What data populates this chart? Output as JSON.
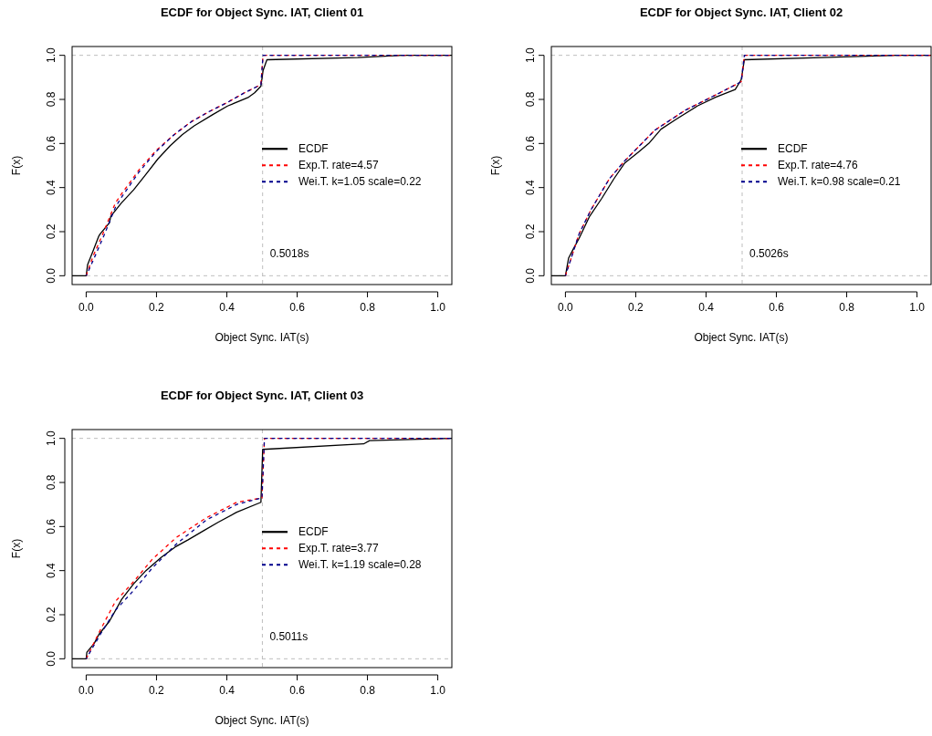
{
  "chart_data": [
    {
      "type": "line",
      "title": "ECDF for Object Sync. IAT, Client 01",
      "xlabel": "Object Sync. IAT(s)",
      "ylabel": "F(x)",
      "xlim": [
        -0.04,
        1.04
      ],
      "ylim": [
        -0.04,
        1.04
      ],
      "xticks": [
        {
          "value": 0,
          "label": "0.0"
        },
        {
          "value": 0.2,
          "label": "0.2"
        },
        {
          "value": 0.4,
          "label": "0.4"
        },
        {
          "value": 0.6,
          "label": "0.6"
        },
        {
          "value": 0.8,
          "label": "0.8"
        },
        {
          "value": 1,
          "label": "1.0"
        }
      ],
      "yticks": [
        {
          "value": 0,
          "label": "0.0"
        },
        {
          "value": 0.2,
          "label": "0.2"
        },
        {
          "value": 0.4,
          "label": "0.4"
        },
        {
          "value": 0.6,
          "label": "0.6"
        },
        {
          "value": 0.8,
          "label": "0.8"
        },
        {
          "value": 1,
          "label": "1.0"
        }
      ],
      "legend": "right",
      "ref_lines": [
        {
          "axis": "y",
          "value": 0,
          "color": "#bebebe",
          "line_style": "dashed"
        },
        {
          "axis": "y",
          "value": 1,
          "color": "#bebebe",
          "line_style": "dashed"
        },
        {
          "axis": "x",
          "value": 0.5018,
          "label": "0.5018s",
          "color": "#bebebe",
          "line_style": "dashed"
        }
      ],
      "series": [
        {
          "name": "ECDF",
          "color": "#000000",
          "line_style": "solid",
          "x": [
            -0.04,
            0,
            0.004,
            0.019,
            0.036,
            0.04,
            0.066,
            0.07,
            0.1,
            0.135,
            0.17,
            0.204,
            0.239,
            0.273,
            0.307,
            0.359,
            0.402,
            0.462,
            0.479,
            0.497,
            0.503,
            0.514,
            0.772,
            0.9,
            1.04
          ],
          "values": [
            0,
            0,
            0.05,
            0.11,
            0.18,
            0.19,
            0.24,
            0.27,
            0.33,
            0.39,
            0.46,
            0.53,
            0.59,
            0.64,
            0.68,
            0.73,
            0.77,
            0.81,
            0.83,
            0.86,
            0.93,
            0.98,
            0.99,
            1,
            1
          ]
        },
        {
          "name": "Exp.T. rate=4.57",
          "color": "#ff0000",
          "line_style": "dashed",
          "x": [
            0,
            0.02,
            0.05,
            0.083,
            0.1,
            0.15,
            0.2,
            0.25,
            0.3,
            0.35,
            0.4,
            0.45,
            0.497,
            0.503,
            1.04
          ],
          "values": [
            0,
            0.09,
            0.2,
            0.33,
            0.37,
            0.48,
            0.57,
            0.64,
            0.7,
            0.745,
            0.785,
            0.83,
            0.867,
            1,
            1
          ]
        },
        {
          "name": "Wei.T. k=1.05 scale=0.22",
          "color": "#00008b",
          "line_style": "dashed",
          "x": [
            0,
            0.02,
            0.05,
            0.083,
            0.1,
            0.15,
            0.2,
            0.25,
            0.3,
            0.35,
            0.4,
            0.45,
            0.497,
            0.503,
            1.04
          ],
          "values": [
            0,
            0.07,
            0.18,
            0.31,
            0.355,
            0.47,
            0.565,
            0.64,
            0.7,
            0.745,
            0.785,
            0.83,
            0.867,
            1,
            1
          ]
        }
      ]
    },
    {
      "type": "line",
      "title": "ECDF for Object Sync. IAT, Client 02",
      "xlabel": "Object Sync. IAT(s)",
      "ylabel": "F(x)",
      "xlim": [
        -0.04,
        1.04
      ],
      "ylim": [
        -0.04,
        1.04
      ],
      "xticks": [
        {
          "value": 0,
          "label": "0.0"
        },
        {
          "value": 0.2,
          "label": "0.2"
        },
        {
          "value": 0.4,
          "label": "0.4"
        },
        {
          "value": 0.6,
          "label": "0.6"
        },
        {
          "value": 0.8,
          "label": "0.8"
        },
        {
          "value": 1,
          "label": "1.0"
        }
      ],
      "yticks": [
        {
          "value": 0,
          "label": "0.0"
        },
        {
          "value": 0.2,
          "label": "0.2"
        },
        {
          "value": 0.4,
          "label": "0.4"
        },
        {
          "value": 0.6,
          "label": "0.6"
        },
        {
          "value": 0.8,
          "label": "0.8"
        },
        {
          "value": 1,
          "label": "1.0"
        }
      ],
      "legend": "right",
      "ref_lines": [
        {
          "axis": "y",
          "value": 0,
          "color": "#bebebe",
          "line_style": "dashed"
        },
        {
          "axis": "y",
          "value": 1,
          "color": "#bebebe",
          "line_style": "dashed"
        },
        {
          "axis": "x",
          "value": 0.5026,
          "label": "0.5026s",
          "color": "#bebebe",
          "line_style": "dashed"
        }
      ],
      "series": [
        {
          "name": "ECDF",
          "color": "#000000",
          "line_style": "solid",
          "x": [
            -0.04,
            0,
            0.009,
            0.022,
            0.039,
            0.069,
            0.103,
            0.138,
            0.168,
            0.207,
            0.237,
            0.272,
            0.315,
            0.375,
            0.427,
            0.483,
            0.5,
            0.509,
            0.728,
            0.944,
            1.04
          ],
          "values": [
            0,
            0,
            0.08,
            0.12,
            0.17,
            0.27,
            0.35,
            0.44,
            0.51,
            0.56,
            0.6,
            0.665,
            0.71,
            0.77,
            0.81,
            0.845,
            0.89,
            0.98,
            0.99,
            1,
            1
          ]
        },
        {
          "name": "Exp.T. rate=4.76",
          "color": "#ff0000",
          "line_style": "dashed",
          "x": [
            0,
            0.039,
            0.073,
            0.125,
            0.168,
            0.254,
            0.34,
            0.427,
            0.5,
            0.509,
            1.04
          ],
          "values": [
            0,
            0.19,
            0.3,
            0.44,
            0.52,
            0.66,
            0.75,
            0.82,
            0.88,
            1,
            1
          ]
        },
        {
          "name": "Wei.T. k=0.98 scale=0.21",
          "color": "#00008b",
          "line_style": "dashed",
          "x": [
            0,
            0.039,
            0.073,
            0.125,
            0.168,
            0.254,
            0.34,
            0.427,
            0.5,
            0.509,
            1.04
          ],
          "values": [
            0,
            0.19,
            0.3,
            0.44,
            0.52,
            0.66,
            0.75,
            0.82,
            0.88,
            1,
            1
          ]
        }
      ]
    },
    {
      "type": "line",
      "title": "ECDF for Object Sync. IAT, Client 03",
      "xlabel": "Object Sync. IAT(s)",
      "ylabel": "F(x)",
      "xlim": [
        -0.04,
        1.04
      ],
      "ylim": [
        -0.04,
        1.04
      ],
      "xticks": [
        {
          "value": 0,
          "label": "0.0"
        },
        {
          "value": 0.2,
          "label": "0.2"
        },
        {
          "value": 0.4,
          "label": "0.4"
        },
        {
          "value": 0.6,
          "label": "0.6"
        },
        {
          "value": 0.8,
          "label": "0.8"
        },
        {
          "value": 1,
          "label": "1.0"
        }
      ],
      "yticks": [
        {
          "value": 0,
          "label": "0.0"
        },
        {
          "value": 0.2,
          "label": "0.2"
        },
        {
          "value": 0.4,
          "label": "0.4"
        },
        {
          "value": 0.6,
          "label": "0.6"
        },
        {
          "value": 0.8,
          "label": "0.8"
        },
        {
          "value": 1,
          "label": "1.0"
        }
      ],
      "legend": "right",
      "ref_lines": [
        {
          "axis": "y",
          "value": 0,
          "color": "#bebebe",
          "line_style": "dashed"
        },
        {
          "axis": "y",
          "value": 1,
          "color": "#bebebe",
          "line_style": "dashed"
        },
        {
          "axis": "x",
          "value": 0.5011,
          "label": "0.5011s",
          "color": "#bebebe",
          "line_style": "dashed"
        }
      ],
      "series": [
        {
          "name": "ECDF",
          "color": "#000000",
          "line_style": "solid",
          "x": [
            -0.04,
            0,
            0.002,
            0.023,
            0.036,
            0.066,
            0.101,
            0.135,
            0.17,
            0.213,
            0.256,
            0.29,
            0.333,
            0.376,
            0.428,
            0.497,
            0.502,
            0.789,
            0.806,
            1.04
          ],
          "values": [
            0,
            0,
            0.03,
            0.07,
            0.11,
            0.17,
            0.27,
            0.34,
            0.4,
            0.46,
            0.51,
            0.54,
            0.58,
            0.62,
            0.665,
            0.71,
            0.95,
            0.975,
            0.99,
            1
          ]
        },
        {
          "name": "Exp.T. rate=3.77",
          "color": "#ff0000",
          "line_style": "dashed",
          "x": [
            0,
            0.04,
            0.083,
            0.135,
            0.187,
            0.256,
            0.342,
            0.428,
            0.5,
            0.507,
            1.04
          ],
          "values": [
            0,
            0.13,
            0.26,
            0.35,
            0.45,
            0.55,
            0.64,
            0.71,
            0.73,
            1,
            1
          ]
        },
        {
          "name": "Wei.T. k=1.19 scale=0.28",
          "color": "#00008b",
          "line_style": "dashed",
          "x": [
            0,
            0.04,
            0.083,
            0.135,
            0.187,
            0.256,
            0.342,
            0.428,
            0.5,
            0.507,
            1.04
          ],
          "values": [
            0,
            0.11,
            0.22,
            0.31,
            0.41,
            0.52,
            0.63,
            0.7,
            0.73,
            1,
            1
          ]
        }
      ]
    }
  ]
}
